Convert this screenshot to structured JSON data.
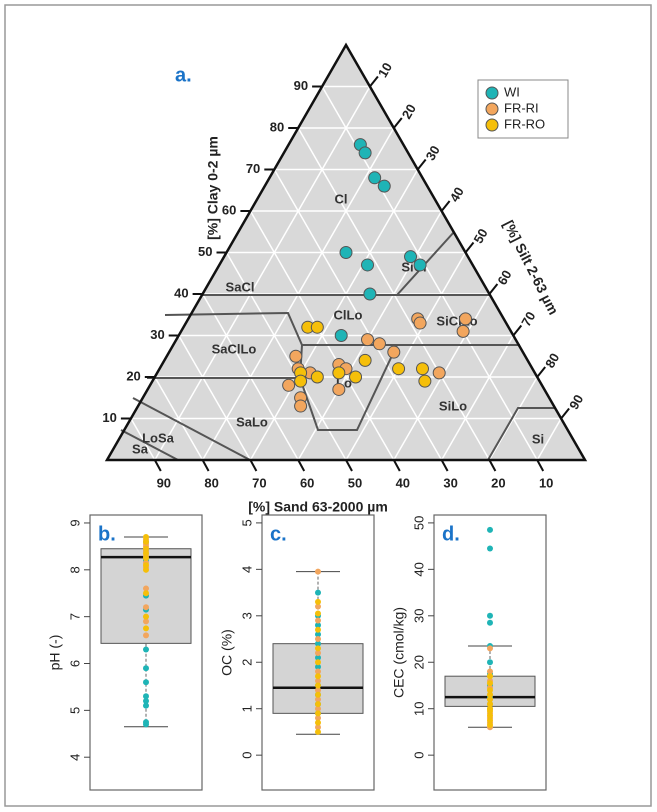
{
  "chart_data": [
    {
      "type": "ternary",
      "panel_label": "a.",
      "clay_label": "[%] Clay 0-2 µm",
      "silt_label": "[%] Silt 2-63 µm",
      "sand_label": "[%] Sand 63-2000 µm",
      "clay_ticks": [
        10,
        20,
        30,
        40,
        50,
        60,
        70,
        80,
        90
      ],
      "silt_ticks": [
        10,
        20,
        30,
        40,
        50,
        60,
        70,
        80,
        90
      ],
      "sand_ticks": [
        10,
        20,
        30,
        40,
        50,
        60,
        70,
        80,
        90
      ],
      "grid": true,
      "legend": "top-right",
      "regions": [
        "Cl",
        "SiCl",
        "SaCl",
        "ClLo",
        "SiClLo",
        "SaClLo",
        "Lo",
        "SaLo",
        "SiLo",
        "Si",
        "LoSa",
        "Sa"
      ],
      "series": [
        {
          "name": "WI",
          "color": "#1fb4b6",
          "clay": [
            76,
            74,
            68,
            66,
            50,
            47,
            49,
            47,
            40,
            30
          ],
          "silt": [
            15,
            17,
            22,
            25,
            25,
            31,
            39,
            42,
            35,
            34
          ]
        },
        {
          "name": "FR-RI",
          "color": "#f2a65e",
          "clay": [
            29,
            28,
            26,
            34,
            33,
            34,
            31,
            25,
            22,
            18,
            15,
            13,
            23,
            22,
            17,
            21,
            21
          ],
          "silt": [
            40,
            43,
            47,
            48,
            49,
            58,
            59,
            27,
            29,
            29,
            33,
            34,
            37,
            39,
            40,
            59,
            32
          ]
        },
        {
          "name": "FR-RO",
          "color": "#f5bf0a",
          "clay": [
            32,
            32,
            24,
            21,
            20,
            22,
            22,
            19,
            21,
            20,
            19
          ],
          "silt": [
            26,
            28,
            42,
            38,
            42,
            50,
            55,
            57,
            30,
            34,
            31
          ]
        }
      ]
    },
    {
      "type": "box",
      "panel_label": "b.",
      "ylabel": "pH (-)",
      "ylim": [
        3.3,
        9.17
      ],
      "yticks": [
        4,
        5,
        6,
        7,
        8,
        9
      ],
      "box": {
        "min": 4.65,
        "q1": 6.43,
        "median": 8.27,
        "q3": 8.45,
        "max": 8.7
      },
      "series": [
        {
          "color": "#1fb4b6",
          "values": [
            8.6,
            8.4,
            8.25,
            8.2,
            7.45,
            7.15,
            6.3,
            5.9,
            5.6,
            5.3,
            5.2,
            5.1,
            4.75,
            4.7
          ]
        },
        {
          "color": "#f2a65e",
          "values": [
            8.65,
            8.55,
            8.5,
            8.4,
            8.3,
            8.15,
            8.05,
            7.6,
            7.2,
            6.9,
            6.6
          ]
        },
        {
          "color": "#f5bf0a",
          "values": [
            8.7,
            8.6,
            8.45,
            8.35,
            8.25,
            8.1,
            8.0,
            7.5,
            7.0,
            6.75
          ]
        }
      ]
    },
    {
      "type": "box",
      "panel_label": "c.",
      "ylabel": "OC (%)",
      "ylim": [
        -0.75,
        5.17
      ],
      "yticks": [
        0,
        1,
        2,
        3,
        4,
        5
      ],
      "box": {
        "min": 0.45,
        "q1": 0.9,
        "median": 1.45,
        "q3": 2.4,
        "max": 3.95
      },
      "series": [
        {
          "color": "#1fb4b6",
          "values": [
            3.5,
            3.0,
            2.8,
            2.6,
            2.4,
            2.1,
            1.9,
            1.5,
            1.3,
            1.1,
            0.9
          ]
        },
        {
          "color": "#f2a65e",
          "values": [
            3.95,
            3.2,
            2.9,
            2.5,
            2.2,
            1.8,
            1.6,
            1.4,
            1.2,
            1.0,
            0.8,
            0.6
          ]
        },
        {
          "color": "#f5bf0a",
          "values": [
            3.3,
            3.05,
            2.7,
            2.3,
            2.0,
            1.7,
            1.5,
            1.3,
            1.1,
            0.9,
            0.7,
            0.5
          ]
        }
      ]
    },
    {
      "type": "box",
      "panel_label": "d.",
      "ylabel": "CEC (cmol/kg)",
      "ylim": [
        -7.5,
        51.7
      ],
      "yticks": [
        0,
        10,
        20,
        30,
        40,
        50
      ],
      "box": {
        "min": 6,
        "q1": 10.5,
        "median": 12.5,
        "q3": 17,
        "max": 23.5
      },
      "series": [
        {
          "color": "#1fb4b6",
          "values": [
            48.5,
            44.5,
            30,
            28.5,
            23.5,
            20,
            17.5,
            15,
            12.5,
            11,
            10
          ]
        },
        {
          "color": "#f2a65e",
          "values": [
            23,
            18,
            16,
            14.5,
            13,
            12,
            11,
            10,
            9,
            8,
            7,
            6
          ]
        },
        {
          "color": "#f5bf0a",
          "values": [
            17,
            15.5,
            14,
            13,
            12,
            11,
            10,
            9.5,
            8.5,
            7.5,
            6.5
          ]
        }
      ]
    }
  ]
}
